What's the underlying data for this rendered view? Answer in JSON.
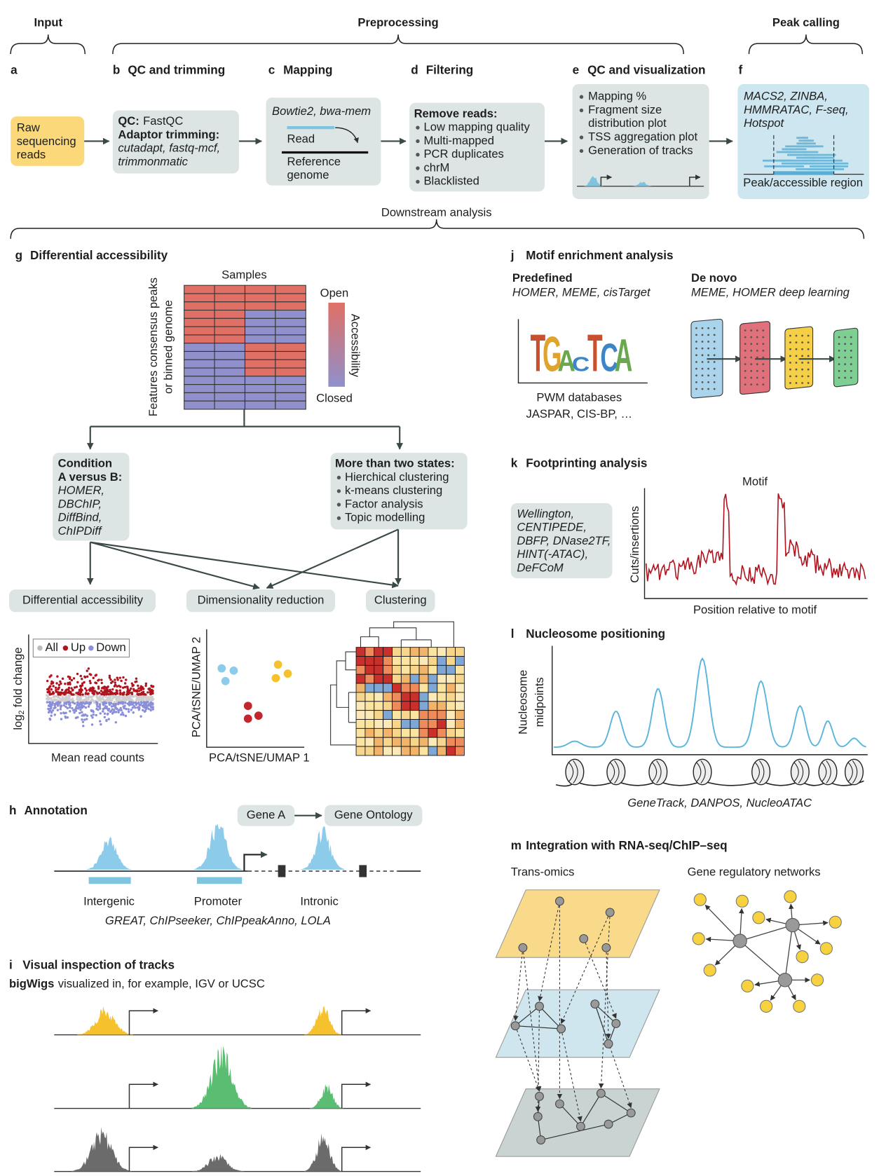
{
  "header": {
    "input": "Input",
    "preprocessing": "Preprocessing",
    "peak_calling": "Peak calling",
    "downstream": "Downstream analysis"
  },
  "a": {
    "letter": "a",
    "box": [
      "Raw",
      "sequencing",
      "reads"
    ]
  },
  "b": {
    "letter": "b",
    "title": "QC and trimming",
    "qc_label": "QC:",
    "qc_tool": "FastQC",
    "trim_label": "Adaptor trimming:",
    "trim_tools": [
      "cutadapt, fastq-mcf,",
      "trimmonmatic"
    ]
  },
  "c": {
    "letter": "c",
    "title": "Mapping",
    "tools": "Bowtie2, bwa-mem",
    "read": "Read",
    "reference": [
      "Reference",
      "genome"
    ]
  },
  "d": {
    "letter": "d",
    "title": "Filtering",
    "heading": "Remove reads:",
    "items": [
      "Low mapping quality",
      "Multi-mapped",
      "PCR duplicates",
      "chrM",
      "Blacklisted"
    ]
  },
  "e": {
    "letter": "e",
    "title": "QC and visualization",
    "items": [
      [
        "Mapping %"
      ],
      [
        "Fragment size",
        "distribution plot"
      ],
      [
        "TSS aggregation plot"
      ],
      [
        "Generation of tracks"
      ]
    ]
  },
  "f": {
    "letter": "f",
    "tools": [
      "MACS2, ZINBA,",
      "HMMRATAC, F-seq,",
      "Hotspot"
    ],
    "caption": "Peak/accessible region"
  },
  "g": {
    "letter": "g",
    "title": "Differential accessibility",
    "samples": "Samples",
    "features": [
      "Features consensus peaks",
      "or binned genome"
    ],
    "open": "Open",
    "closed": "Closed",
    "scale": "Accessibility",
    "condition": {
      "heading": [
        "Condition",
        "A versus B:"
      ],
      "tools": [
        "HOMER,",
        "DBChIP,",
        "DiffBind,",
        "ChIPDiff"
      ]
    },
    "states": {
      "heading": "More than two states:",
      "items": [
        "Hierchical clustering",
        "k-means clustering",
        "Factor analysis",
        "Topic modelling"
      ]
    },
    "outputs": [
      "Differential accessibility",
      "Dimensionality reduction",
      "Clustering"
    ],
    "legend": [
      "All",
      "Up",
      "Down"
    ],
    "ma_y": [
      "log",
      "2",
      "fold change"
    ],
    "ma_x": "Mean read counts",
    "pca_y": "PCA/tSNE/UMAP 2",
    "pca_x": "PCA/tSNE/UMAP 1"
  },
  "h": {
    "letter": "h",
    "title": "Annotation",
    "gene": "Gene A",
    "ontology": "Gene Ontology",
    "regions": [
      "Intergenic",
      "Promoter",
      "Intronic"
    ],
    "tools": "GREAT, ChIPseeker, ChIPpeakAnno, LOLA"
  },
  "i": {
    "letter": "i",
    "title": "Visual inspection of tracks",
    "format": "bigWigs",
    "text": "visualized in, for example, IGV or UCSC"
  },
  "j": {
    "letter": "j",
    "title": "Motif enrichment analysis",
    "predefined": {
      "label": "Predefined",
      "tools": "HOMER, MEME, cisTarget"
    },
    "denovo": {
      "label": "De novo",
      "tools": "MEME, HOMER deep learning"
    },
    "logo": [
      "T",
      "G",
      "A",
      "C",
      "T",
      "C",
      "A"
    ],
    "databases": [
      "PWM databases",
      "JASPAR, CIS-BP, …"
    ]
  },
  "k": {
    "letter": "k",
    "title": "Footprinting analysis",
    "tools": [
      "Wellington,",
      "CENTIPEDE,",
      "DBFP, DNase2TF,",
      "HINT(-ATAC),",
      "DeFCoM"
    ],
    "motif": "Motif",
    "y": "Cuts/insertions",
    "x": "Position relative to motif"
  },
  "l": {
    "letter": "l",
    "title": "Nucleosome positioning",
    "y": [
      "Nucleosome",
      "midpoints"
    ],
    "tools": "GeneTrack, DANPOS, NucleoATAC"
  },
  "m": {
    "letter": "m",
    "title": "Integration with RNA-seq/ChIP–seq",
    "left": "Trans-omics",
    "right": "Gene regulatory networks"
  }
}
